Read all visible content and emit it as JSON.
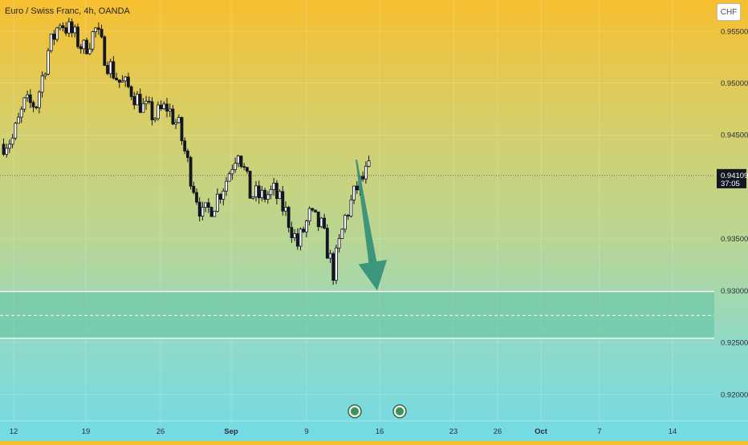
{
  "header": {
    "title": "Euro / Swiss Franc, 4h, OANDA",
    "currency": "CHF"
  },
  "price_scale": {
    "current_price": "0.94109",
    "countdown": "37:05"
  },
  "colors": {
    "up_candle": "#ffffff",
    "down_candle": "#131722",
    "zone_fill": "#5fc3a1",
    "arrow": "#2f8f78",
    "price_label_bg": "#131722"
  },
  "chart_data": {
    "type": "candlestick",
    "title": "Euro / Swiss Franc, 4h, OANDA",
    "x_ticks": [
      "12",
      "19",
      "26",
      "Sep",
      "9",
      "16",
      "23",
      "26",
      "Oct",
      "7",
      "14"
    ],
    "y_ticks": [
      "0.95500",
      "0.95000",
      "0.94500",
      "0.93500",
      "0.93000",
      "0.92500",
      "0.92000"
    ],
    "ylim": [
      0.9155,
      0.958
    ],
    "last_price": 0.94109,
    "support_zone": {
      "top": 0.9299,
      "mid": 0.9276,
      "bottom": 0.9254
    },
    "forecast_arrow": {
      "from_price": 0.9423,
      "to_price": 0.93,
      "direction": "down"
    },
    "event_markers": 2,
    "close_path": [
      [
        0.9441,
        0.9446
      ],
      [
        0.9446,
        0.9479
      ],
      [
        0.9479,
        0.948
      ],
      [
        0.948,
        0.9531
      ],
      [
        0.9531,
        0.956
      ],
      [
        0.956,
        0.9548
      ],
      [
        0.9548,
        0.9533
      ],
      [
        0.9533,
        0.9551
      ],
      [
        0.9551,
        0.952
      ],
      [
        0.952,
        0.9501
      ],
      [
        0.9501,
        0.9493
      ],
      [
        0.9493,
        0.9476
      ],
      [
        0.9476,
        0.9468
      ],
      [
        0.9468,
        0.9477
      ],
      [
        0.9477,
        0.9457
      ],
      [
        0.9457,
        0.9411
      ],
      [
        0.9411,
        0.9371
      ],
      [
        0.9371,
        0.9385
      ],
      [
        0.9385,
        0.9407
      ],
      [
        0.9407,
        0.9438
      ],
      [
        0.9438,
        0.9393
      ],
      [
        0.9393,
        0.939
      ],
      [
        0.939,
        0.9395
      ],
      [
        0.9395,
        0.9375
      ],
      [
        0.9375,
        0.9344
      ],
      [
        0.9344,
        0.9372
      ],
      [
        0.9372,
        0.9361
      ],
      [
        0.9361,
        0.9318
      ],
      [
        0.9318,
        0.937
      ],
      [
        0.937,
        0.9399
      ],
      [
        0.9399,
        0.9416
      ]
    ]
  }
}
